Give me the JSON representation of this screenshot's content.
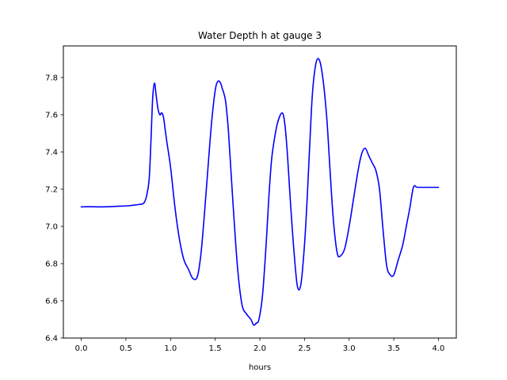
{
  "chart_data": {
    "type": "line",
    "title": "Water Depth h at gauge 3",
    "xlabel": "hours",
    "ylabel": "",
    "xlim": [
      -0.2,
      4.2
    ],
    "ylim": [
      6.4,
      7.97
    ],
    "xticks": [
      0.0,
      0.5,
      1.0,
      1.5,
      2.0,
      2.5,
      3.0,
      3.5,
      4.0
    ],
    "xtick_labels": [
      "0.0",
      "0.5",
      "1.0",
      "1.5",
      "2.0",
      "2.5",
      "3.0",
      "3.5",
      "4.0"
    ],
    "yticks": [
      6.4,
      6.6,
      6.8,
      7.0,
      7.2,
      7.4,
      7.6,
      7.8
    ],
    "ytick_labels": [
      "6.4",
      "6.6",
      "6.8",
      "7.0",
      "7.2",
      "7.4",
      "7.6",
      "7.8"
    ],
    "grid": false,
    "legend": "none",
    "series": [
      {
        "color": "#0000ff",
        "x": [
          0.0,
          0.1,
          0.2,
          0.3,
          0.4,
          0.5,
          0.55,
          0.6,
          0.65,
          0.7,
          0.73,
          0.76,
          0.78,
          0.8,
          0.82,
          0.84,
          0.86,
          0.88,
          0.9,
          0.92,
          0.94,
          0.96,
          1.0,
          1.05,
          1.1,
          1.15,
          1.2,
          1.25,
          1.3,
          1.34,
          1.38,
          1.42,
          1.46,
          1.5,
          1.53,
          1.56,
          1.58,
          1.6,
          1.62,
          1.65,
          1.7,
          1.75,
          1.8,
          1.85,
          1.9,
          1.93,
          1.96,
          1.99,
          2.03,
          2.07,
          2.1,
          2.13,
          2.16,
          2.2,
          2.25,
          2.28,
          2.31,
          2.34,
          2.38,
          2.42,
          2.46,
          2.5,
          2.53,
          2.56,
          2.59,
          2.63,
          2.67,
          2.71,
          2.75,
          2.78,
          2.81,
          2.84,
          2.87,
          2.9,
          2.95,
          3.0,
          3.05,
          3.1,
          3.14,
          3.18,
          3.22,
          3.26,
          3.3,
          3.34,
          3.38,
          3.42,
          3.46,
          3.5,
          3.55,
          3.6,
          3.64,
          3.68,
          3.72,
          3.76,
          3.8,
          3.85,
          3.9,
          3.95,
          4.0
        ],
        "y": [
          7.105,
          7.106,
          7.105,
          7.106,
          7.108,
          7.11,
          7.112,
          7.115,
          7.118,
          7.125,
          7.16,
          7.25,
          7.45,
          7.69,
          7.77,
          7.7,
          7.63,
          7.6,
          7.61,
          7.59,
          7.52,
          7.45,
          7.32,
          7.1,
          6.93,
          6.82,
          6.77,
          6.72,
          6.73,
          6.85,
          7.07,
          7.32,
          7.56,
          7.73,
          7.78,
          7.77,
          7.74,
          7.71,
          7.66,
          7.5,
          7.12,
          6.78,
          6.58,
          6.53,
          6.5,
          6.47,
          6.48,
          6.5,
          6.63,
          6.9,
          7.15,
          7.35,
          7.46,
          7.56,
          7.61,
          7.55,
          7.38,
          7.15,
          6.88,
          6.68,
          6.69,
          6.9,
          7.15,
          7.45,
          7.72,
          7.88,
          7.89,
          7.78,
          7.58,
          7.35,
          7.12,
          6.95,
          6.85,
          6.84,
          6.88,
          7.0,
          7.15,
          7.3,
          7.39,
          7.42,
          7.38,
          7.34,
          7.3,
          7.2,
          6.98,
          6.79,
          6.74,
          6.74,
          6.82,
          6.9,
          7.0,
          7.1,
          7.21,
          7.21,
          7.21,
          7.21,
          7.21,
          7.21,
          7.21
        ]
      }
    ]
  }
}
